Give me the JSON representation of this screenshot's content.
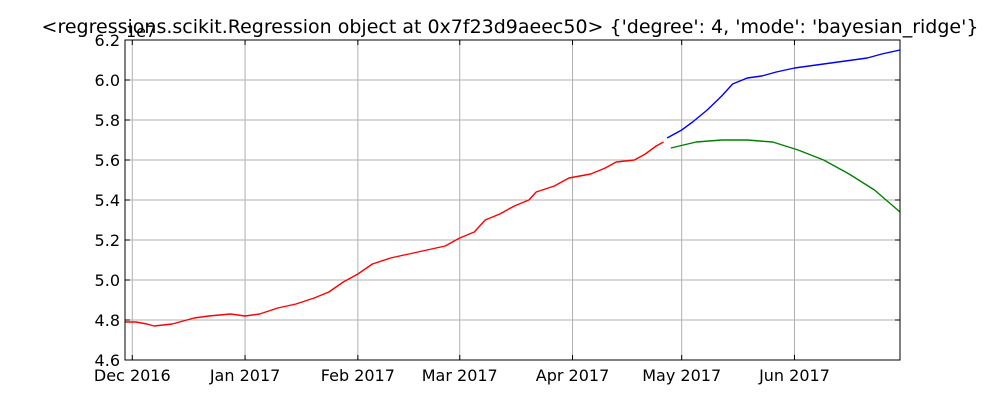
{
  "chart_data": {
    "type": "line",
    "title": "<regressions.scikit.Regression object at 0x7f23d9aeec50> {'degree': 4, 'mode': 'bayesian_ridge'}",
    "xlabel": "",
    "ylabel": "",
    "offset_label": "1e7",
    "x_range": [
      "2016-11-29",
      "2017-06-30"
    ],
    "ylim": [
      4.6,
      6.2
    ],
    "grid": true,
    "x_ticks": [
      {
        "date": "2016-12-01",
        "label": "Dec 2016"
      },
      {
        "date": "2017-01-01",
        "label": "Jan 2017"
      },
      {
        "date": "2017-02-01",
        "label": "Feb 2017"
      },
      {
        "date": "2017-03-01",
        "label": "Mar 2017"
      },
      {
        "date": "2017-04-01",
        "label": "Apr 2017"
      },
      {
        "date": "2017-05-01",
        "label": "May 2017"
      },
      {
        "date": "2017-06-01",
        "label": "Jun 2017"
      }
    ],
    "y_ticks": [
      "4.6",
      "4.8",
      "5.0",
      "5.2",
      "5.4",
      "5.6",
      "5.8",
      "6.0",
      "6.2"
    ],
    "series": [
      {
        "color": "#ff0000",
        "points": [
          [
            "2016-11-29",
            4.79
          ],
          [
            "2016-12-02",
            4.79
          ],
          [
            "2016-12-05",
            4.78
          ],
          [
            "2016-12-07",
            4.77
          ],
          [
            "2016-12-12",
            4.78
          ],
          [
            "2016-12-18",
            4.81
          ],
          [
            "2016-12-22",
            4.82
          ],
          [
            "2016-12-28",
            4.83
          ],
          [
            "2017-01-01",
            4.82
          ],
          [
            "2017-01-05",
            4.83
          ],
          [
            "2017-01-10",
            4.86
          ],
          [
            "2017-01-15",
            4.88
          ],
          [
            "2017-01-20",
            4.91
          ],
          [
            "2017-01-24",
            4.94
          ],
          [
            "2017-01-28",
            4.99
          ],
          [
            "2017-02-01",
            5.03
          ],
          [
            "2017-02-05",
            5.08
          ],
          [
            "2017-02-10",
            5.11
          ],
          [
            "2017-02-15",
            5.13
          ],
          [
            "2017-02-20",
            5.15
          ],
          [
            "2017-02-25",
            5.17
          ],
          [
            "2017-03-01",
            5.21
          ],
          [
            "2017-03-05",
            5.24
          ],
          [
            "2017-03-08",
            5.3
          ],
          [
            "2017-03-12",
            5.33
          ],
          [
            "2017-03-16",
            5.37
          ],
          [
            "2017-03-20",
            5.4
          ],
          [
            "2017-03-22",
            5.44
          ],
          [
            "2017-03-27",
            5.47
          ],
          [
            "2017-03-31",
            5.51
          ],
          [
            "2017-04-03",
            5.52
          ],
          [
            "2017-04-06",
            5.53
          ],
          [
            "2017-04-10",
            5.56
          ],
          [
            "2017-04-13",
            5.59
          ],
          [
            "2017-04-18",
            5.6
          ],
          [
            "2017-04-21",
            5.63
          ],
          [
            "2017-04-24",
            5.67
          ],
          [
            "2017-04-26",
            5.69
          ]
        ]
      },
      {
        "color": "#0000ff",
        "points": [
          [
            "2017-04-27",
            5.71
          ],
          [
            "2017-05-01",
            5.75
          ],
          [
            "2017-05-04",
            5.79
          ],
          [
            "2017-05-08",
            5.85
          ],
          [
            "2017-05-12",
            5.92
          ],
          [
            "2017-05-15",
            5.98
          ],
          [
            "2017-05-19",
            6.01
          ],
          [
            "2017-05-23",
            6.02
          ],
          [
            "2017-05-27",
            6.04
          ],
          [
            "2017-06-01",
            6.06
          ],
          [
            "2017-06-05",
            6.07
          ],
          [
            "2017-06-09",
            6.08
          ],
          [
            "2017-06-13",
            6.09
          ],
          [
            "2017-06-17",
            6.1
          ],
          [
            "2017-06-21",
            6.11
          ],
          [
            "2017-06-25",
            6.13
          ],
          [
            "2017-06-30",
            6.15
          ]
        ]
      },
      {
        "color": "#008000",
        "points": [
          [
            "2017-04-28",
            5.66
          ],
          [
            "2017-05-05",
            5.69
          ],
          [
            "2017-05-12",
            5.7
          ],
          [
            "2017-05-19",
            5.7
          ],
          [
            "2017-05-26",
            5.69
          ],
          [
            "2017-06-02",
            5.65
          ],
          [
            "2017-06-09",
            5.6
          ],
          [
            "2017-06-16",
            5.53
          ],
          [
            "2017-06-23",
            5.45
          ],
          [
            "2017-06-30",
            5.34
          ]
        ]
      }
    ]
  }
}
